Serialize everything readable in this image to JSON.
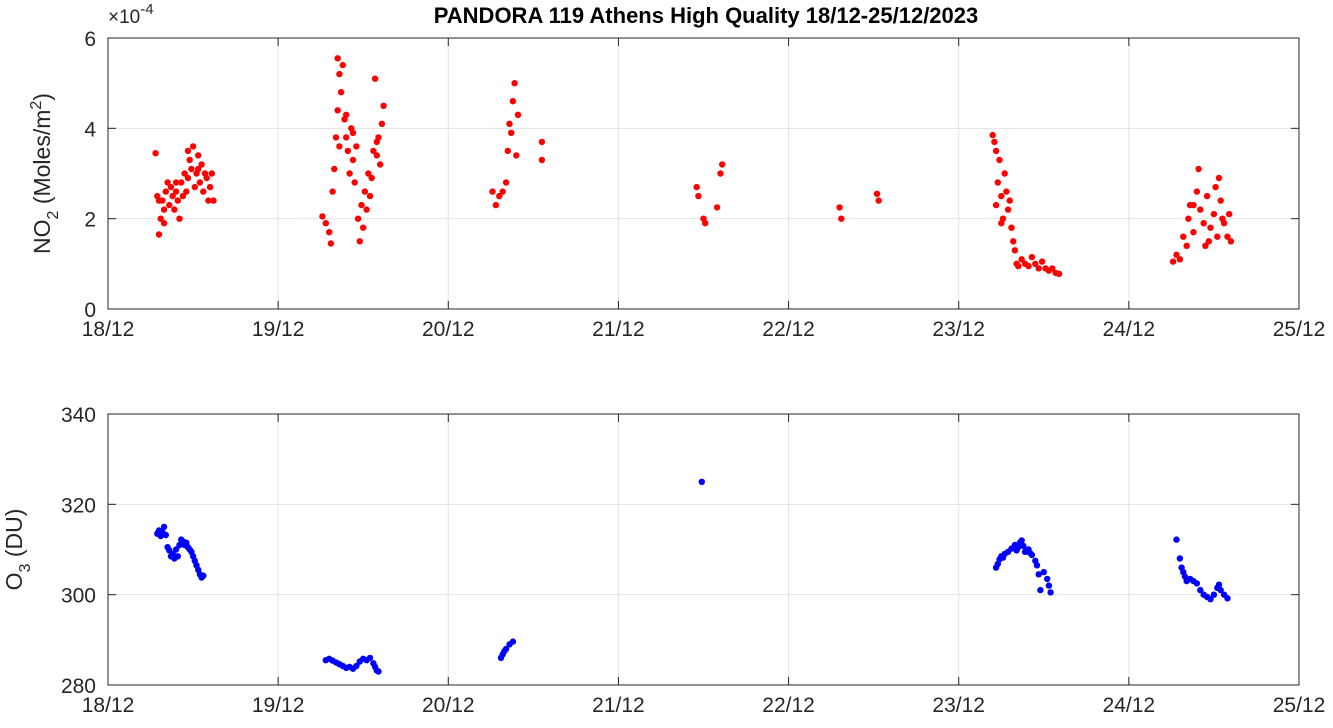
{
  "chart_data": [
    {
      "type": "scatter",
      "title": "PANDORA 119 Athens High Quality 18/12-25/12/2023",
      "ylabel_main": "NO",
      "ylabel_sub": "2",
      "ylabel_rest": " (Moles/m",
      "ylabel_sup": "2",
      "ylabel_close": ")",
      "exponent_label": "×10",
      "exponent_power": "-4",
      "xlim": [
        0,
        7
      ],
      "ylim": [
        0,
        6
      ],
      "xticks": [
        0,
        1,
        2,
        3,
        4,
        5,
        6,
        7
      ],
      "xticklabels": [
        "18/12",
        "19/12",
        "20/12",
        "21/12",
        "22/12",
        "23/12",
        "24/12",
        "25/12"
      ],
      "yticks": [
        0,
        2,
        4,
        6
      ],
      "yticklabels": [
        "0",
        "2",
        "4",
        "6"
      ],
      "grid": true,
      "color": "#ff0000",
      "series": [
        {
          "points": [
            [
              0.28,
              3.45
            ],
            [
              0.29,
              2.5
            ],
            [
              0.3,
              1.65
            ],
            [
              0.31,
              2.0
            ],
            [
              0.32,
              2.4
            ],
            [
              0.33,
              2.2
            ],
            [
              0.34,
              2.6
            ],
            [
              0.35,
              2.8
            ],
            [
              0.36,
              2.3
            ],
            [
              0.37,
              2.7
            ],
            [
              0.38,
              2.5
            ],
            [
              0.39,
              2.2
            ],
            [
              0.4,
              2.6
            ],
            [
              0.41,
              2.4
            ],
            [
              0.42,
              2.0
            ],
            [
              0.43,
              2.8
            ],
            [
              0.44,
              2.5
            ],
            [
              0.45,
              3.0
            ],
            [
              0.46,
              2.6
            ],
            [
              0.47,
              2.9
            ],
            [
              0.48,
              3.3
            ],
            [
              0.49,
              3.1
            ],
            [
              0.5,
              3.6
            ],
            [
              0.51,
              2.7
            ],
            [
              0.52,
              3.0
            ],
            [
              0.53,
              3.4
            ],
            [
              0.54,
              2.8
            ],
            [
              0.55,
              3.2
            ],
            [
              0.56,
              2.6
            ],
            [
              0.57,
              3.0
            ],
            [
              0.58,
              2.9
            ],
            [
              0.59,
              2.4
            ],
            [
              0.6,
              2.7
            ],
            [
              0.61,
              3.0
            ],
            [
              0.62,
              2.4
            ],
            [
              0.3,
              2.4
            ],
            [
              0.33,
              1.9
            ],
            [
              0.4,
              2.8
            ],
            [
              0.47,
              3.5
            ],
            [
              0.53,
              3.1
            ],
            [
              1.26,
              2.05
            ],
            [
              1.28,
              1.9
            ],
            [
              1.3,
              1.7
            ],
            [
              1.31,
              1.45
            ],
            [
              1.32,
              2.6
            ],
            [
              1.33,
              3.1
            ],
            [
              1.34,
              3.8
            ],
            [
              1.35,
              4.4
            ],
            [
              1.35,
              5.55
            ],
            [
              1.36,
              5.2
            ],
            [
              1.37,
              4.8
            ],
            [
              1.38,
              5.4
            ],
            [
              1.39,
              4.2
            ],
            [
              1.4,
              3.8
            ],
            [
              1.41,
              3.5
            ],
            [
              1.42,
              3.0
            ],
            [
              1.43,
              4.0
            ],
            [
              1.44,
              3.3
            ],
            [
              1.45,
              2.8
            ],
            [
              1.46,
              3.6
            ],
            [
              1.47,
              2.0
            ],
            [
              1.48,
              1.5
            ],
            [
              1.49,
              2.3
            ],
            [
              1.5,
              1.8
            ],
            [
              1.51,
              2.6
            ],
            [
              1.52,
              2.2
            ],
            [
              1.53,
              3.0
            ],
            [
              1.54,
              2.5
            ],
            [
              1.55,
              2.9
            ],
            [
              1.56,
              3.5
            ],
            [
              1.57,
              5.1
            ],
            [
              1.58,
              3.4
            ],
            [
              1.59,
              3.8
            ],
            [
              1.6,
              3.2
            ],
            [
              1.61,
              4.1
            ],
            [
              1.62,
              4.5
            ],
            [
              1.36,
              3.6
            ],
            [
              1.4,
              4.3
            ],
            [
              1.44,
              3.9
            ],
            [
              1.58,
              3.7
            ],
            [
              2.26,
              2.6
            ],
            [
              2.28,
              2.3
            ],
            [
              2.3,
              2.5
            ],
            [
              2.32,
              2.6
            ],
            [
              2.34,
              2.8
            ],
            [
              2.35,
              3.5
            ],
            [
              2.36,
              4.1
            ],
            [
              2.37,
              3.9
            ],
            [
              2.38,
              4.6
            ],
            [
              2.39,
              5.0
            ],
            [
              2.4,
              3.4
            ],
            [
              2.41,
              4.3
            ],
            [
              2.55,
              3.7
            ],
            [
              2.55,
              3.3
            ],
            [
              3.46,
              2.7
            ],
            [
              3.47,
              2.5
            ],
            [
              3.5,
              2.0
            ],
            [
              3.51,
              1.9
            ],
            [
              3.58,
              2.25
            ],
            [
              3.6,
              3.0
            ],
            [
              3.61,
              3.2
            ],
            [
              4.3,
              2.25
            ],
            [
              4.31,
              2.0
            ],
            [
              4.52,
              2.55
            ],
            [
              4.53,
              2.4
            ],
            [
              5.2,
              3.85
            ],
            [
              5.21,
              3.7
            ],
            [
              5.22,
              2.3
            ],
            [
              5.23,
              2.8
            ],
            [
              5.24,
              3.3
            ],
            [
              5.25,
              2.5
            ],
            [
              5.26,
              2.0
            ],
            [
              5.27,
              3.0
            ],
            [
              5.28,
              2.6
            ],
            [
              5.29,
              2.2
            ],
            [
              5.3,
              2.4
            ],
            [
              5.31,
              1.8
            ],
            [
              5.32,
              1.5
            ],
            [
              5.33,
              1.3
            ],
            [
              5.34,
              1.0
            ],
            [
              5.35,
              0.95
            ],
            [
              5.37,
              1.1
            ],
            [
              5.39,
              1.0
            ],
            [
              5.41,
              0.95
            ],
            [
              5.43,
              1.15
            ],
            [
              5.45,
              1.0
            ],
            [
              5.47,
              0.9
            ],
            [
              5.49,
              1.05
            ],
            [
              5.51,
              0.9
            ],
            [
              5.53,
              0.85
            ],
            [
              5.55,
              0.9
            ],
            [
              5.57,
              0.8
            ],
            [
              5.59,
              0.78
            ],
            [
              5.22,
              3.5
            ],
            [
              5.25,
              1.9
            ],
            [
              6.26,
              1.05
            ],
            [
              6.28,
              1.2
            ],
            [
              6.3,
              1.1
            ],
            [
              6.32,
              1.6
            ],
            [
              6.34,
              1.4
            ],
            [
              6.35,
              2.0
            ],
            [
              6.36,
              2.3
            ],
            [
              6.38,
              1.7
            ],
            [
              6.4,
              2.6
            ],
            [
              6.41,
              3.1
            ],
            [
              6.42,
              2.2
            ],
            [
              6.44,
              1.9
            ],
            [
              6.46,
              2.5
            ],
            [
              6.47,
              1.5
            ],
            [
              6.48,
              1.8
            ],
            [
              6.5,
              2.1
            ],
            [
              6.52,
              1.6
            ],
            [
              6.53,
              2.9
            ],
            [
              6.54,
              2.4
            ],
            [
              6.55,
              2.0
            ],
            [
              6.56,
              1.9
            ],
            [
              6.58,
              1.6
            ],
            [
              6.59,
              2.1
            ],
            [
              6.6,
              1.5
            ],
            [
              6.45,
              1.4
            ],
            [
              6.38,
              2.3
            ],
            [
              6.51,
              2.7
            ]
          ]
        }
      ]
    },
    {
      "type": "scatter",
      "ylabel_main": "O",
      "ylabel_sub": "3",
      "ylabel_rest": " (DU)",
      "xlim": [
        0,
        7
      ],
      "ylim": [
        280,
        340
      ],
      "xticks": [
        0,
        1,
        2,
        3,
        4,
        5,
        6,
        7
      ],
      "xticklabels": [
        "18/12",
        "19/12",
        "20/12",
        "21/12",
        "22/12",
        "23/12",
        "24/12",
        "25/12"
      ],
      "yticks": [
        280,
        300,
        320,
        340
      ],
      "yticklabels": [
        "280",
        "300",
        "320",
        "340"
      ],
      "grid": true,
      "color": "#0000ff",
      "series": [
        {
          "points": [
            [
              0.29,
              313.5
            ],
            [
              0.3,
              314.2
            ],
            [
              0.31,
              313.0
            ],
            [
              0.32,
              313.8
            ],
            [
              0.33,
              315.0
            ],
            [
              0.34,
              313.2
            ],
            [
              0.35,
              310.5
            ],
            [
              0.36,
              309.8
            ],
            [
              0.37,
              308.5
            ],
            [
              0.38,
              309.0
            ],
            [
              0.39,
              308.0
            ],
            [
              0.4,
              310.0
            ],
            [
              0.41,
              308.5
            ],
            [
              0.42,
              311.0
            ],
            [
              0.43,
              312.2
            ],
            [
              0.44,
              311.8
            ],
            [
              0.45,
              311.0
            ],
            [
              0.46,
              311.5
            ],
            [
              0.47,
              310.5
            ],
            [
              0.48,
              310.0
            ],
            [
              0.49,
              309.5
            ],
            [
              0.5,
              308.5
            ],
            [
              0.51,
              307.5
            ],
            [
              0.52,
              306.5
            ],
            [
              0.53,
              305.5
            ],
            [
              0.54,
              304.5
            ],
            [
              0.55,
              303.8
            ],
            [
              0.56,
              304.2
            ],
            [
              1.28,
              285.5
            ],
            [
              1.3,
              285.8
            ],
            [
              1.32,
              285.4
            ],
            [
              1.34,
              285.0
            ],
            [
              1.36,
              284.6
            ],
            [
              1.38,
              284.2
            ],
            [
              1.4,
              283.8
            ],
            [
              1.42,
              284.0
            ],
            [
              1.44,
              283.6
            ],
            [
              1.46,
              284.2
            ],
            [
              1.48,
              285.2
            ],
            [
              1.5,
              285.8
            ],
            [
              1.52,
              285.5
            ],
            [
              1.54,
              286.0
            ],
            [
              1.56,
              284.8
            ],
            [
              1.57,
              284.0
            ],
            [
              1.58,
              283.2
            ],
            [
              1.59,
              283.0
            ],
            [
              2.31,
              286.0
            ],
            [
              2.32,
              286.8
            ],
            [
              2.33,
              287.5
            ],
            [
              2.34,
              288.0
            ],
            [
              2.36,
              289.0
            ],
            [
              2.38,
              289.6
            ],
            [
              3.49,
              325.0
            ],
            [
              5.22,
              306.0
            ],
            [
              5.23,
              306.8
            ],
            [
              5.24,
              307.8
            ],
            [
              5.25,
              308.5
            ],
            [
              5.27,
              309.0
            ],
            [
              5.29,
              309.5
            ],
            [
              5.31,
              310.2
            ],
            [
              5.33,
              311.0
            ],
            [
              5.35,
              310.5
            ],
            [
              5.36,
              311.5
            ],
            [
              5.37,
              312.0
            ],
            [
              5.38,
              310.8
            ],
            [
              5.39,
              309.5
            ],
            [
              5.41,
              310.0
            ],
            [
              5.43,
              308.8
            ],
            [
              5.45,
              307.5
            ],
            [
              5.46,
              306.5
            ],
            [
              5.47,
              304.5
            ],
            [
              5.48,
              301.0
            ],
            [
              5.5,
              305.0
            ],
            [
              5.52,
              303.5
            ],
            [
              5.53,
              302.0
            ],
            [
              5.54,
              300.5
            ],
            [
              5.26,
              308.2
            ],
            [
              5.34,
              309.8
            ],
            [
              5.42,
              309.2
            ],
            [
              6.28,
              312.2
            ],
            [
              6.3,
              308.0
            ],
            [
              6.31,
              306.0
            ],
            [
              6.32,
              305.0
            ],
            [
              6.33,
              304.0
            ],
            [
              6.34,
              303.0
            ],
            [
              6.36,
              303.5
            ],
            [
              6.38,
              303.0
            ],
            [
              6.4,
              302.5
            ],
            [
              6.42,
              301.0
            ],
            [
              6.44,
              300.0
            ],
            [
              6.46,
              299.5
            ],
            [
              6.48,
              299.0
            ],
            [
              6.5,
              300.0
            ],
            [
              6.52,
              301.5
            ],
            [
              6.53,
              302.2
            ],
            [
              6.54,
              301.0
            ],
            [
              6.56,
              300.0
            ],
            [
              6.58,
              299.2
            ]
          ]
        }
      ]
    }
  ]
}
